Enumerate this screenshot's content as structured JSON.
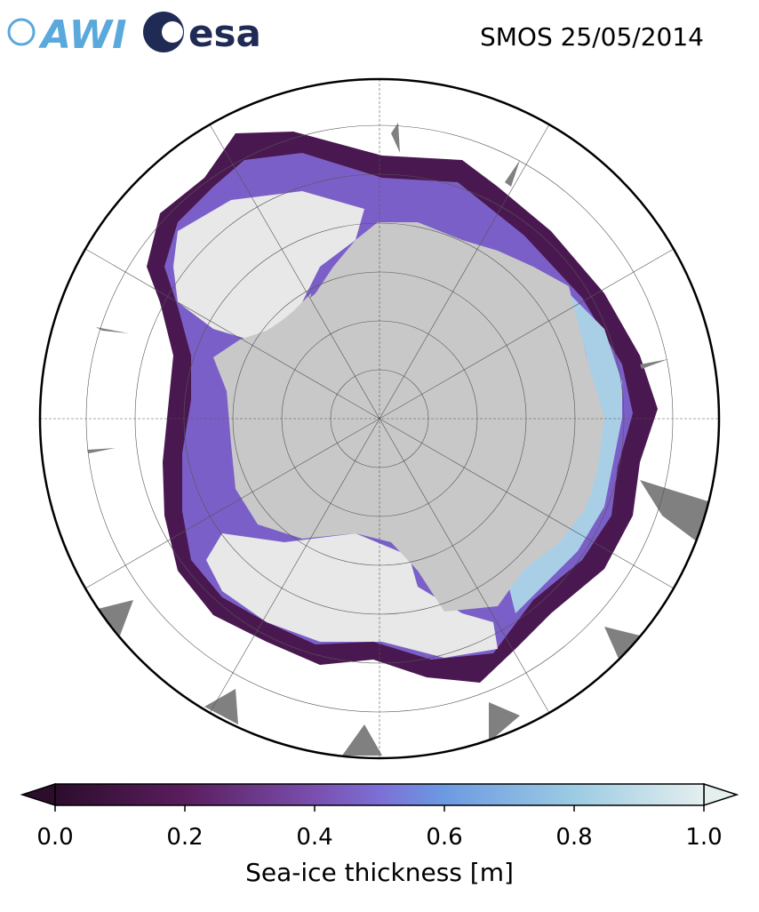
{
  "header": {
    "title": "SMOS 25/05/2014",
    "logos": [
      "AWI",
      "esa"
    ]
  },
  "colorbar": {
    "label": "Sea-ice thickness [m]",
    "lim": [
      0,
      1
    ],
    "ticks": [
      {
        "value": 0,
        "label": "0.0"
      },
      {
        "value": 0.2,
        "label": "0.2"
      },
      {
        "value": 0.4,
        "label": "0.4"
      },
      {
        "value": 0.6,
        "label": "0.6"
      },
      {
        "value": 0.8,
        "label": "0.8"
      },
      {
        "value": 1,
        "label": "1.0"
      }
    ]
  }
}
